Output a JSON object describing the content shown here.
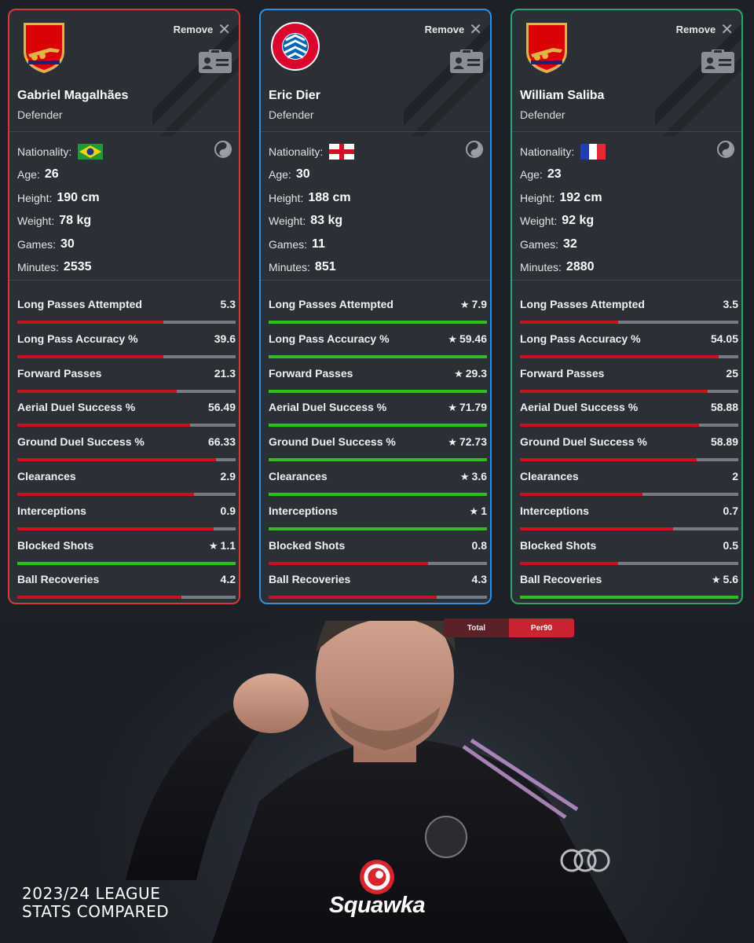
{
  "toggle": {
    "options": [
      "Total",
      "Per90"
    ],
    "selected": "Per90"
  },
  "headline": {
    "line1": "2023/24 LEAGUE",
    "line2": "STATS COMPARED"
  },
  "brand": {
    "name": "Squawka"
  },
  "colors": {
    "bad": "#c7141c",
    "good": "#2fbf1c",
    "track": "#777b82"
  },
  "stat_labels": [
    "Long Passes Attempted",
    "Long Pass Accuracy %",
    "Forward Passes",
    "Aerial Duel Success %",
    "Ground Duel Success %",
    "Clearances",
    "Interceptions",
    "Blocked Shots",
    "Ball Recoveries"
  ],
  "players": [
    {
      "club_crest_text": "Arsenal",
      "remove_label": "Remove",
      "name": "Gabriel Magalhães",
      "position": "Defender",
      "nationality_label": "Nationality:",
      "nationality_flag": "brazil",
      "age_label": "Age:",
      "age": "26",
      "height_label": "Height:",
      "height": "190 cm",
      "weight_label": "Weight:",
      "weight": "78 kg",
      "games_label": "Games:",
      "games": "30",
      "minutes_label": "Minutes:",
      "minutes": "2535",
      "stats": [
        {
          "value": "5.3",
          "best": false,
          "fill": 0.67
        },
        {
          "value": "39.6",
          "best": false,
          "fill": 0.67
        },
        {
          "value": "21.3",
          "best": false,
          "fill": 0.73
        },
        {
          "value": "56.49",
          "best": false,
          "fill": 0.79
        },
        {
          "value": "66.33",
          "best": false,
          "fill": 0.91
        },
        {
          "value": "2.9",
          "best": false,
          "fill": 0.81
        },
        {
          "value": "0.9",
          "best": false,
          "fill": 0.9
        },
        {
          "value": "1.1",
          "best": true,
          "fill": 1.0
        },
        {
          "value": "4.2",
          "best": false,
          "fill": 0.75
        }
      ]
    },
    {
      "club_crest_text": "FC BAYERN MÜNCHEN",
      "remove_label": "Remove",
      "name": "Eric Dier",
      "position": "Defender",
      "nationality_label": "Nationality:",
      "nationality_flag": "england",
      "age_label": "Age:",
      "age": "30",
      "height_label": "Height:",
      "height": "188 cm",
      "weight_label": "Weight:",
      "weight": "83 kg",
      "games_label": "Games:",
      "games": "11",
      "minutes_label": "Minutes:",
      "minutes": "851",
      "stats": [
        {
          "value": "7.9",
          "best": true,
          "fill": 1.0
        },
        {
          "value": "59.46",
          "best": true,
          "fill": 1.0
        },
        {
          "value": "29.3",
          "best": true,
          "fill": 1.0
        },
        {
          "value": "71.79",
          "best": true,
          "fill": 1.0
        },
        {
          "value": "72.73",
          "best": true,
          "fill": 1.0
        },
        {
          "value": "3.6",
          "best": true,
          "fill": 1.0
        },
        {
          "value": "1",
          "best": true,
          "fill": 1.0
        },
        {
          "value": "0.8",
          "best": false,
          "fill": 0.73
        },
        {
          "value": "4.3",
          "best": false,
          "fill": 0.77
        }
      ]
    },
    {
      "club_crest_text": "Arsenal",
      "remove_label": "Remove",
      "name": "William Saliba",
      "position": "Defender",
      "nationality_label": "Nationality:",
      "nationality_flag": "france",
      "age_label": "Age:",
      "age": "23",
      "height_label": "Height:",
      "height": "192 cm",
      "weight_label": "Weight:",
      "weight": "92 kg",
      "games_label": "Games:",
      "games": "32",
      "minutes_label": "Minutes:",
      "minutes": "2880",
      "stats": [
        {
          "value": "3.5",
          "best": false,
          "fill": 0.45
        },
        {
          "value": "54.05",
          "best": false,
          "fill": 0.91
        },
        {
          "value": "25",
          "best": false,
          "fill": 0.86
        },
        {
          "value": "58.88",
          "best": false,
          "fill": 0.82
        },
        {
          "value": "58.89",
          "best": false,
          "fill": 0.81
        },
        {
          "value": "2",
          "best": false,
          "fill": 0.56
        },
        {
          "value": "0.7",
          "best": false,
          "fill": 0.7
        },
        {
          "value": "0.5",
          "best": false,
          "fill": 0.45
        },
        {
          "value": "5.6",
          "best": true,
          "fill": 1.0
        }
      ]
    }
  ]
}
